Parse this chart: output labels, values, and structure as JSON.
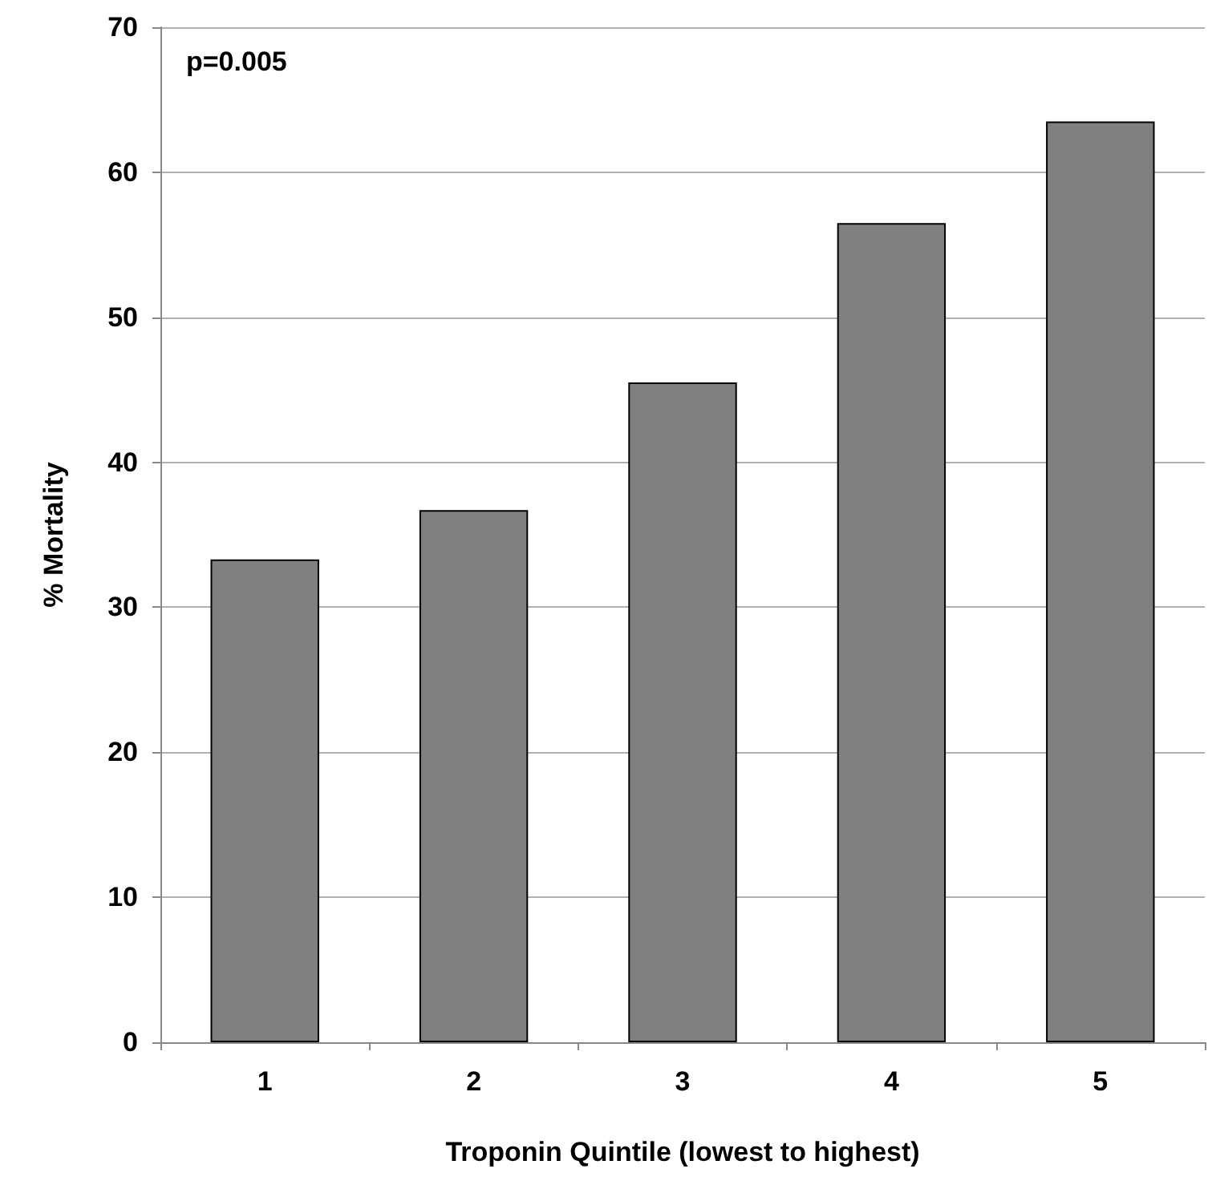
{
  "chart_data": {
    "type": "bar",
    "categories": [
      "1",
      "2",
      "3",
      "4",
      "5"
    ],
    "values": [
      33.3,
      36.7,
      45.5,
      56.5,
      63.5
    ],
    "color": "#808080",
    "xlabel": "Troponin Quintile (lowest to highest)",
    "ylabel": "% Mortality",
    "ylim": [
      0,
      70
    ],
    "yticks": [
      0,
      10,
      20,
      30,
      40,
      50,
      60,
      70
    ],
    "grid": "y",
    "annotations": [
      "p=0.005"
    ]
  }
}
